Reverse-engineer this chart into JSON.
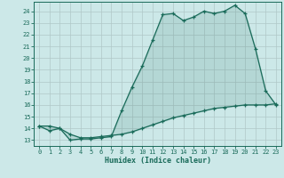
{
  "xlabel": "Humidex (Indice chaleur)",
  "bg_color": "#cce8e8",
  "grid_color": "#b0c8c8",
  "line_color": "#1a6b5a",
  "x_ticks": [
    0,
    1,
    2,
    3,
    4,
    5,
    6,
    7,
    8,
    9,
    10,
    11,
    12,
    13,
    14,
    15,
    16,
    17,
    18,
    19,
    20,
    21,
    22,
    23
  ],
  "y_ticks": [
    13,
    14,
    15,
    16,
    17,
    18,
    19,
    20,
    21,
    22,
    23,
    24
  ],
  "ylim": [
    12.5,
    24.8
  ],
  "xlim": [
    -0.5,
    23.5
  ],
  "line1_x": [
    0,
    1,
    2,
    3,
    4,
    5,
    6,
    7,
    8,
    9,
    10,
    11,
    12,
    13,
    14,
    15,
    16,
    17,
    18,
    19,
    20,
    21,
    22,
    23
  ],
  "line1_y": [
    14.2,
    14.2,
    14.0,
    13.0,
    13.1,
    13.1,
    13.2,
    13.3,
    15.5,
    17.5,
    19.3,
    21.5,
    23.7,
    23.8,
    23.2,
    23.5,
    24.0,
    23.8,
    24.0,
    24.5,
    23.8,
    20.8,
    17.2,
    16.0
  ],
  "line2_x": [
    0,
    1,
    2,
    3,
    4,
    5,
    6,
    7,
    8,
    9,
    10,
    11,
    12,
    13,
    14,
    15,
    16,
    17,
    18,
    19,
    20,
    21,
    22,
    23
  ],
  "line2_y": [
    14.2,
    13.8,
    14.0,
    13.5,
    13.2,
    13.2,
    13.3,
    13.4,
    13.5,
    13.7,
    14.0,
    14.3,
    14.6,
    14.9,
    15.1,
    15.3,
    15.5,
    15.7,
    15.8,
    15.9,
    16.0,
    16.0,
    16.0,
    16.1
  ]
}
